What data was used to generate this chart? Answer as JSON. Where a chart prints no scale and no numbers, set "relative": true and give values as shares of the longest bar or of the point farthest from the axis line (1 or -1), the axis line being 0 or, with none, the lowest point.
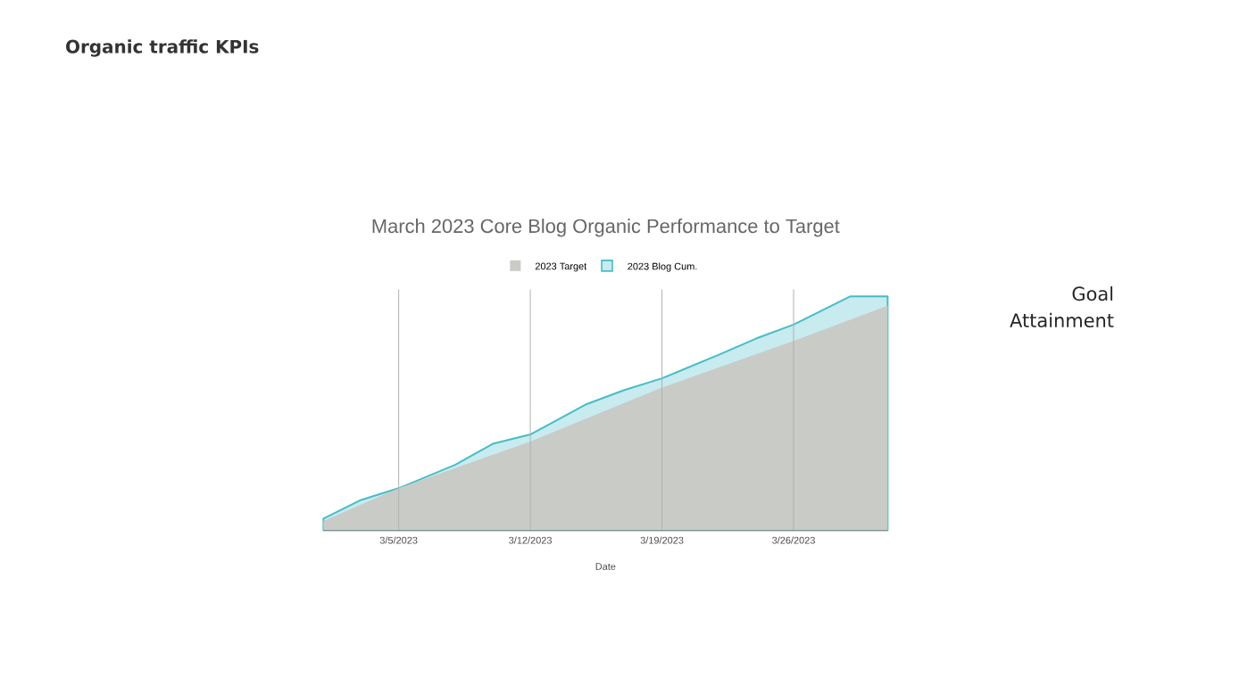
{
  "chart_data": {
    "type": "area",
    "title": "March 2023 Core Blog Organic Performance to Target",
    "xlabel": "Date",
    "annotations": [
      "Organic traffic KPIs",
      "Goal Attainment"
    ],
    "relative": true,
    "legend": "top",
    "grid": "x",
    "xlim": [
      "2023-03-01",
      "2023-03-31"
    ],
    "xticks": [
      {
        "value": "2023-03-05",
        "label": "3/5/2023"
      },
      {
        "value": "2023-03-12",
        "label": "3/12/2023"
      },
      {
        "value": "2023-03-19",
        "label": "3/19/2023"
      },
      {
        "value": "2023-03-26",
        "label": "3/26/2023"
      }
    ],
    "series": [
      {
        "name": "2023 Target",
        "color": "#c9cbc7",
        "x": [
          "2023-03-01",
          "2023-03-05",
          "2023-03-12",
          "2023-03-19",
          "2023-03-26",
          "2023-03-31"
        ],
        "values": [
          0.04,
          0.18,
          0.38,
          0.61,
          0.81,
          0.96
        ]
      },
      {
        "name": "2023 Blog Cum.",
        "color": "#46bdc6",
        "x": [
          "2023-03-01",
          "2023-03-03",
          "2023-03-05",
          "2023-03-08",
          "2023-03-10",
          "2023-03-12",
          "2023-03-15",
          "2023-03-17",
          "2023-03-19",
          "2023-03-22",
          "2023-03-24",
          "2023-03-26",
          "2023-03-29",
          "2023-03-31"
        ],
        "values": [
          0.05,
          0.13,
          0.18,
          0.28,
          0.37,
          0.41,
          0.54,
          0.6,
          0.65,
          0.75,
          0.82,
          0.88,
          1,
          1
        ]
      }
    ]
  }
}
